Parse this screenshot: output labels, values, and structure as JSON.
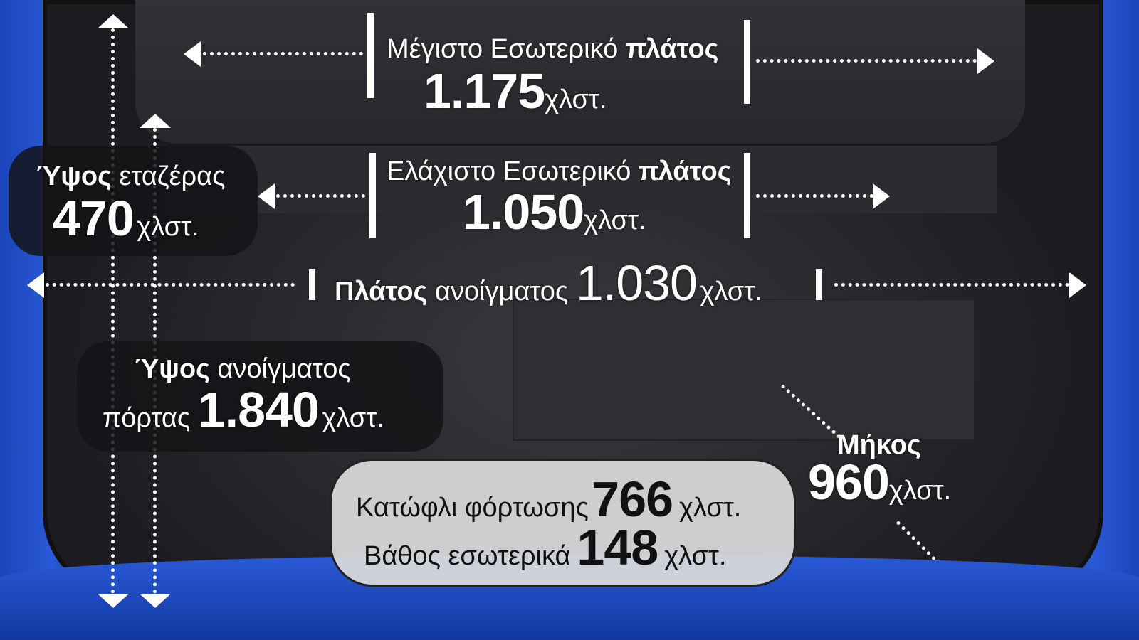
{
  "max_width": {
    "label": "Μέγιστο Εσωτερικό ",
    "label_bold": "πλάτος",
    "value": "1.175",
    "unit": "χλστ."
  },
  "min_width": {
    "label": "Ελάχιστο Εσωτερικό ",
    "label_bold": "πλάτος",
    "value": "1.050",
    "unit": "χλστ."
  },
  "shelf_height": {
    "label_bold": "Ύψος",
    "label": " εταζέρας",
    "value": "470",
    "unit": "χλστ."
  },
  "opening_width": {
    "label_bold": "Πλάτος",
    "label": " ανοίγματος ",
    "value": "1.030",
    "unit": "χλστ."
  },
  "opening_height": {
    "label_bold": "Ύψος",
    "label": " ανοίγματος",
    "label2": "πόρτας ",
    "value": "1.840",
    "unit": "χλστ."
  },
  "length": {
    "label_bold": "Μήκος",
    "value": "960",
    "unit": "χλστ."
  },
  "sill": {
    "label": "Κατώφλι φόρτωσης",
    "value": "766",
    "unit": "χλστ."
  },
  "depth": {
    "label": "Βάθος εσωτερικά",
    "value": "148",
    "unit": "χλστ."
  },
  "colors": {
    "car_body": "#2a5ad8",
    "annotation": "#ffffff"
  }
}
